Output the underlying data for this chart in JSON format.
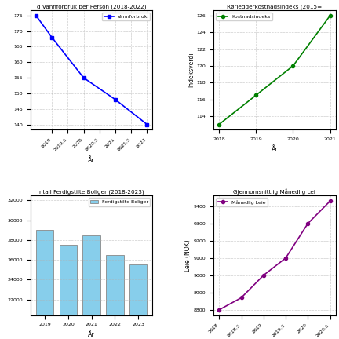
{
  "water_years": [
    2018.5,
    2019.0,
    2020.0,
    2021.0,
    2022.0
  ],
  "water_values": [
    175,
    168,
    155,
    148,
    140
  ],
  "water_title": "g Vannforbruk per Person (2018-2022)",
  "water_ylabel": "",
  "water_legend": "Vannforbruk",
  "water_color": "blue",
  "cost_years": [
    2018,
    2019,
    2020,
    2021
  ],
  "cost_values": [
    113,
    116.5,
    120,
    126
  ],
  "cost_title": "Rørleggerkostnadsindeks (2015=",
  "cost_ylabel": "Indeksverdi",
  "cost_legend": "Kostnadsindeks",
  "cost_color": "green",
  "homes_years": [
    2019,
    2020,
    2021,
    2022,
    2023
  ],
  "homes_values": [
    29000,
    27500,
    28500,
    26500,
    25500
  ],
  "homes_title": "ntall Ferdigstilte Boliger (2018-2023)",
  "homes_ylabel": "",
  "homes_legend": "Ferdigstilte Boliger",
  "homes_color": "#87CEEB",
  "rent_years": [
    2018.0,
    2018.5,
    2019.0,
    2019.5,
    2020.0,
    2020.5
  ],
  "rent_values": [
    8800,
    8870,
    9000,
    9100,
    9300,
    9430
  ],
  "rent_title": "Gjennomsnittlig Månedlig Lei",
  "rent_ylabel": "Leie (NOK)",
  "rent_legend": "Månedlig Leie",
  "rent_color": "purple",
  "background_color": "#ffffff"
}
